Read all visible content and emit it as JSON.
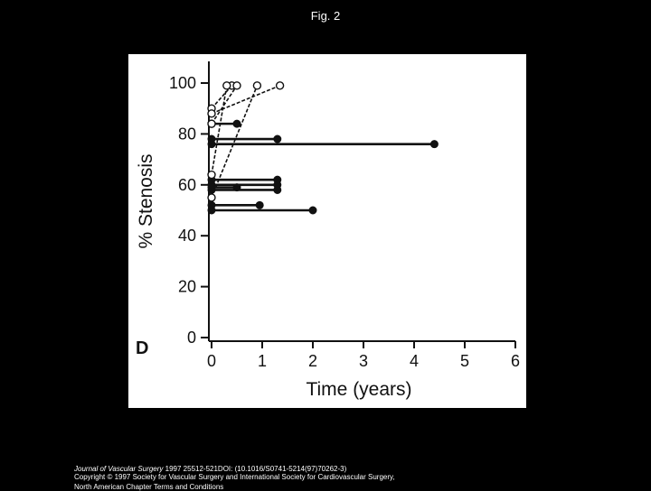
{
  "figure_title": "Fig. 2",
  "footer": {
    "journal": "Journal of Vascular Surgery",
    "citation": " 1997 25512-521DOI: (10.1016/S0741-5214(97)70262-3)",
    "copyright": "Copyright © 1997 Society for Vascular Surgery and International Society for Cardiovascular Surgery,",
    "line3_prefix": "North American Chapter ",
    "terms_link": "Terms and Conditions"
  },
  "chart_data": {
    "type": "scatter",
    "panel_label": "D",
    "xlabel": "Time (years)",
    "ylabel": "% Stenosis",
    "xlim": [
      0,
      6
    ],
    "ylim": [
      0,
      100
    ],
    "x_ticks": [
      0,
      1,
      2,
      3,
      4,
      5,
      6
    ],
    "y_ticks": [
      0,
      20,
      40,
      60,
      80,
      100
    ],
    "x_tick_labels": [
      "0",
      "1",
      "2",
      "3",
      "4",
      "5",
      "6"
    ],
    "y_tick_labels": [
      "0",
      "20",
      "40",
      "60",
      "80",
      "100"
    ],
    "grid": false,
    "series": [
      {
        "style": "solid",
        "points": [
          [
            0,
            76
          ],
          [
            4.4,
            76
          ]
        ]
      },
      {
        "style": "solid",
        "points": [
          [
            0,
            78
          ],
          [
            1.3,
            78
          ]
        ]
      },
      {
        "style": "solid",
        "points": [
          [
            0,
            50
          ],
          [
            2.0,
            50
          ]
        ]
      },
      {
        "style": "solid",
        "points": [
          [
            0,
            52
          ],
          [
            0.95,
            52
          ]
        ]
      },
      {
        "style": "solid",
        "points": [
          [
            0,
            58
          ],
          [
            1.3,
            58
          ]
        ]
      },
      {
        "style": "solid",
        "points": [
          [
            0,
            60
          ],
          [
            1.3,
            60
          ]
        ]
      },
      {
        "style": "solid",
        "points": [
          [
            0,
            62
          ],
          [
            1.3,
            62
          ]
        ]
      },
      {
        "style": "solid",
        "points": [
          [
            0,
            59
          ],
          [
            0.5,
            59
          ]
        ]
      },
      {
        "style": "solid",
        "points": [
          [
            0,
            84
          ],
          [
            0.5,
            84
          ]
        ]
      },
      {
        "style": "dashed",
        "points": [
          [
            0,
            90
          ],
          [
            0.4,
            99
          ]
        ]
      },
      {
        "style": "dashed",
        "points": [
          [
            0,
            84
          ],
          [
            0.5,
            99
          ]
        ]
      },
      {
        "style": "dashed",
        "points": [
          [
            0,
            64
          ],
          [
            0.3,
            99
          ]
        ]
      },
      {
        "style": "dashed",
        "points": [
          [
            0,
            55
          ],
          [
            0.9,
            99
          ]
        ]
      },
      {
        "style": "dashed",
        "points": [
          [
            0,
            88
          ],
          [
            1.35,
            99
          ]
        ]
      }
    ]
  }
}
